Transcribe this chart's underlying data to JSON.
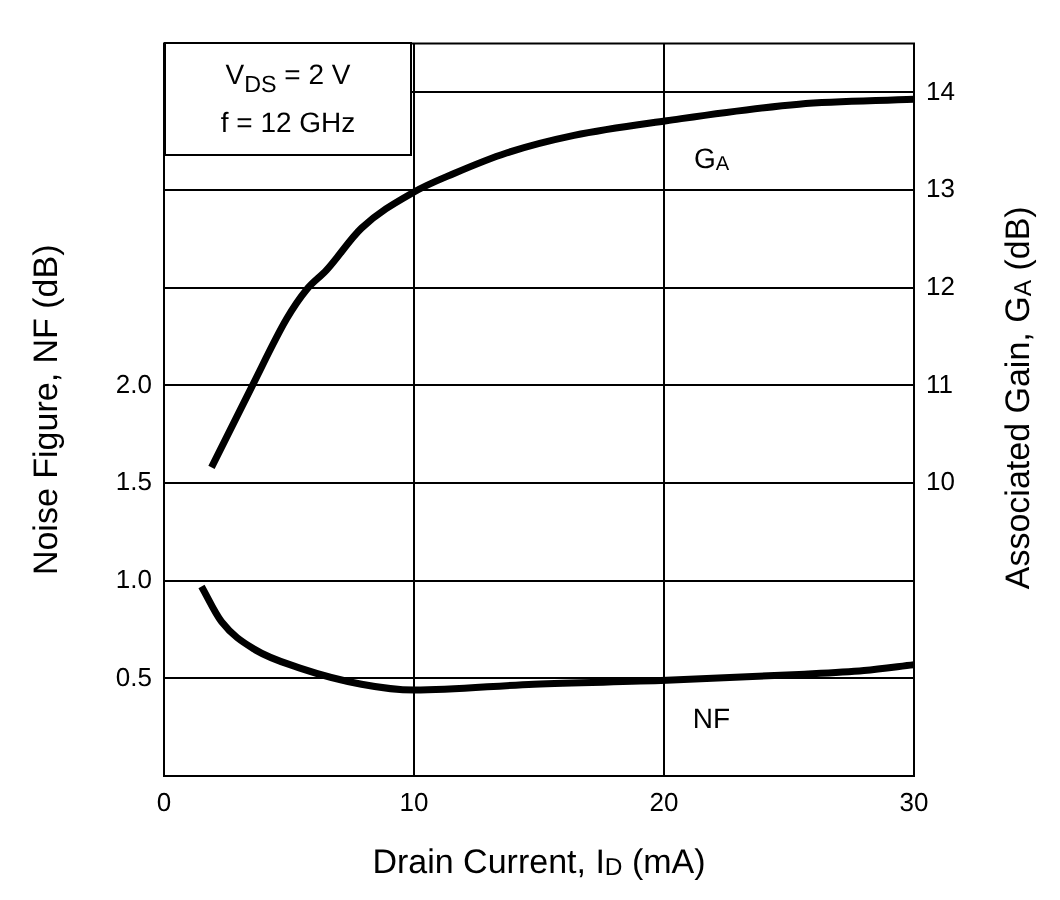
{
  "chart_data": {
    "type": "line",
    "xlabel": "Drain Current, I$_{D}$ (mA)",
    "ylabel": "Noise Figure, NF (dB)",
    "y2label": "Associated Gain, G$_{A}$ (dB)",
    "xlim": [
      0,
      30
    ],
    "xticks": [
      0,
      10,
      20,
      30
    ],
    "ylim": [
      0,
      3.75
    ],
    "yticks": [
      {
        "value": 0.5,
        "label": "0.5"
      },
      {
        "value": 1,
        "label": "1.0"
      },
      {
        "value": 1.5,
        "label": "1.5"
      },
      {
        "value": 2,
        "label": "2.0"
      }
    ],
    "y2lim": [
      7,
      14.5
    ],
    "y2ticks": [
      10,
      11,
      12,
      13,
      14
    ],
    "grid": true,
    "marker": "none",
    "line_style": "solid",
    "series": [
      {
        "name": "G$_{A}$",
        "color": "#000000",
        "axis": "y2",
        "x": [
          1.9,
          3.5,
          4.9,
          5.7,
          6.5,
          7.9,
          10,
          11.6,
          13.7,
          16.4,
          20.1,
          25.4,
          30
        ],
        "values": [
          10.16,
          10.98,
          11.68,
          11.98,
          12.18,
          12.61,
          12.98,
          13.17,
          13.38,
          13.56,
          13.71,
          13.88,
          13.93
        ]
      },
      {
        "name": "NF",
        "color": "#000000",
        "axis": "y",
        "x": [
          1.5,
          2.3,
          3.6,
          5.5,
          7.9,
          10,
          14.8,
          20.1,
          25.4,
          28,
          30
        ],
        "values": [
          0.97,
          0.79,
          0.65,
          0.55,
          0.47,
          0.44,
          0.47,
          0.49,
          0.52,
          0.54,
          0.57
        ]
      }
    ],
    "annotations": [
      "V$_{DS}$ = 2 V",
      "f = 12 GHz"
    ]
  }
}
